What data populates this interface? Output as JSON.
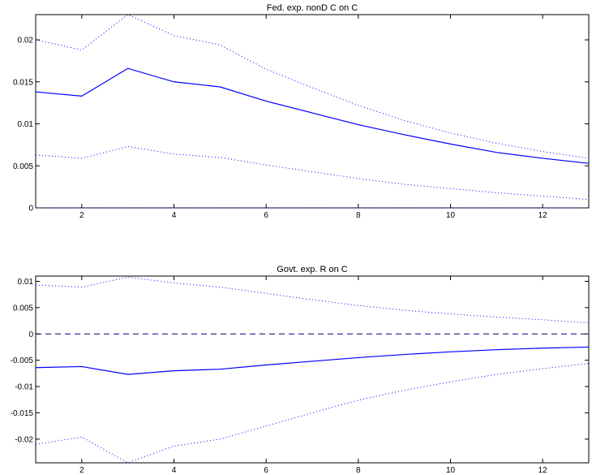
{
  "chart_data": [
    {
      "type": "line",
      "title": "Fed. exp. nonD C on C",
      "xlabel": "",
      "ylabel": "",
      "xlim": [
        1,
        13
      ],
      "ylim": [
        0,
        0.023
      ],
      "xticks": [
        2,
        4,
        6,
        8,
        10,
        12
      ],
      "yticks": [
        0,
        0.005,
        0.01,
        0.015,
        0.02
      ],
      "ytick_labels": [
        "0",
        "0.005",
        "0.01",
        "0.015",
        "0.02"
      ],
      "grid": false,
      "x": [
        1,
        2,
        3,
        4,
        5,
        6,
        7,
        8,
        9,
        10,
        11,
        12,
        13
      ],
      "series": [
        {
          "role": "response",
          "style": "solid",
          "color": "#0000ff",
          "values": [
            0.0138,
            0.0133,
            0.0166,
            0.015,
            0.0144,
            0.0127,
            0.0113,
            0.0099,
            0.0087,
            0.0076,
            0.0066,
            0.0059,
            0.0053
          ]
        },
        {
          "role": "upper band",
          "style": "dotted",
          "color": "#0000ff",
          "values": [
            0.02,
            0.0188,
            0.023,
            0.0205,
            0.0194,
            0.0165,
            0.0143,
            0.0122,
            0.0104,
            0.0089,
            0.0077,
            0.0067,
            0.0059
          ]
        },
        {
          "role": "lower band",
          "style": "dotted",
          "color": "#0000ff",
          "values": [
            0.0063,
            0.0059,
            0.0073,
            0.0064,
            0.006,
            0.0051,
            0.0043,
            0.0035,
            0.0028,
            0.0023,
            0.0018,
            0.0014,
            0.001
          ]
        },
        {
          "role": "zero line",
          "style": "dashed",
          "color": "#000080",
          "values": [
            0,
            0,
            0,
            0,
            0,
            0,
            0,
            0,
            0,
            0,
            0,
            0,
            0
          ]
        }
      ]
    },
    {
      "type": "line",
      "title": "Govt. exp. R on C",
      "xlabel": "",
      "ylabel": "",
      "xlim": [
        1,
        13
      ],
      "ylim": [
        -0.0245,
        0.011
      ],
      "xticks": [
        2,
        4,
        6,
        8,
        10,
        12
      ],
      "yticks": [
        -0.02,
        -0.015,
        -0.01,
        -0.005,
        0,
        0.005,
        0.01
      ],
      "ytick_labels": [
        "-0.02",
        "-0.015",
        "-0.01",
        "-0.005",
        "0",
        "0.005",
        "0.01"
      ],
      "grid": false,
      "x": [
        1,
        2,
        3,
        4,
        5,
        6,
        7,
        8,
        9,
        10,
        11,
        12,
        13
      ],
      "series": [
        {
          "role": "response",
          "style": "solid",
          "color": "#0000ff",
          "values": [
            -0.0064,
            -0.0062,
            -0.0077,
            -0.007,
            -0.0067,
            -0.0059,
            -0.0052,
            -0.0045,
            -0.0039,
            -0.0034,
            -0.003,
            -0.0027,
            -0.0025
          ]
        },
        {
          "role": "upper band",
          "style": "dotted",
          "color": "#0000ff",
          "values": [
            0.0093,
            0.0089,
            0.0108,
            0.0097,
            0.0089,
            0.0077,
            0.0065,
            0.0054,
            0.0045,
            0.0038,
            0.0032,
            0.0027,
            0.0021
          ]
        },
        {
          "role": "lower band",
          "style": "dotted",
          "color": "#0000ff",
          "values": [
            -0.021,
            -0.0196,
            -0.0245,
            -0.0213,
            -0.02,
            -0.0175,
            -0.015,
            -0.0126,
            -0.0107,
            -0.0091,
            -0.0077,
            -0.0066,
            -0.0056
          ]
        },
        {
          "role": "zero line",
          "style": "dashed",
          "color": "#000080",
          "values": [
            0,
            0,
            0,
            0,
            0,
            0,
            0,
            0,
            0,
            0,
            0,
            0,
            0
          ]
        }
      ]
    }
  ]
}
